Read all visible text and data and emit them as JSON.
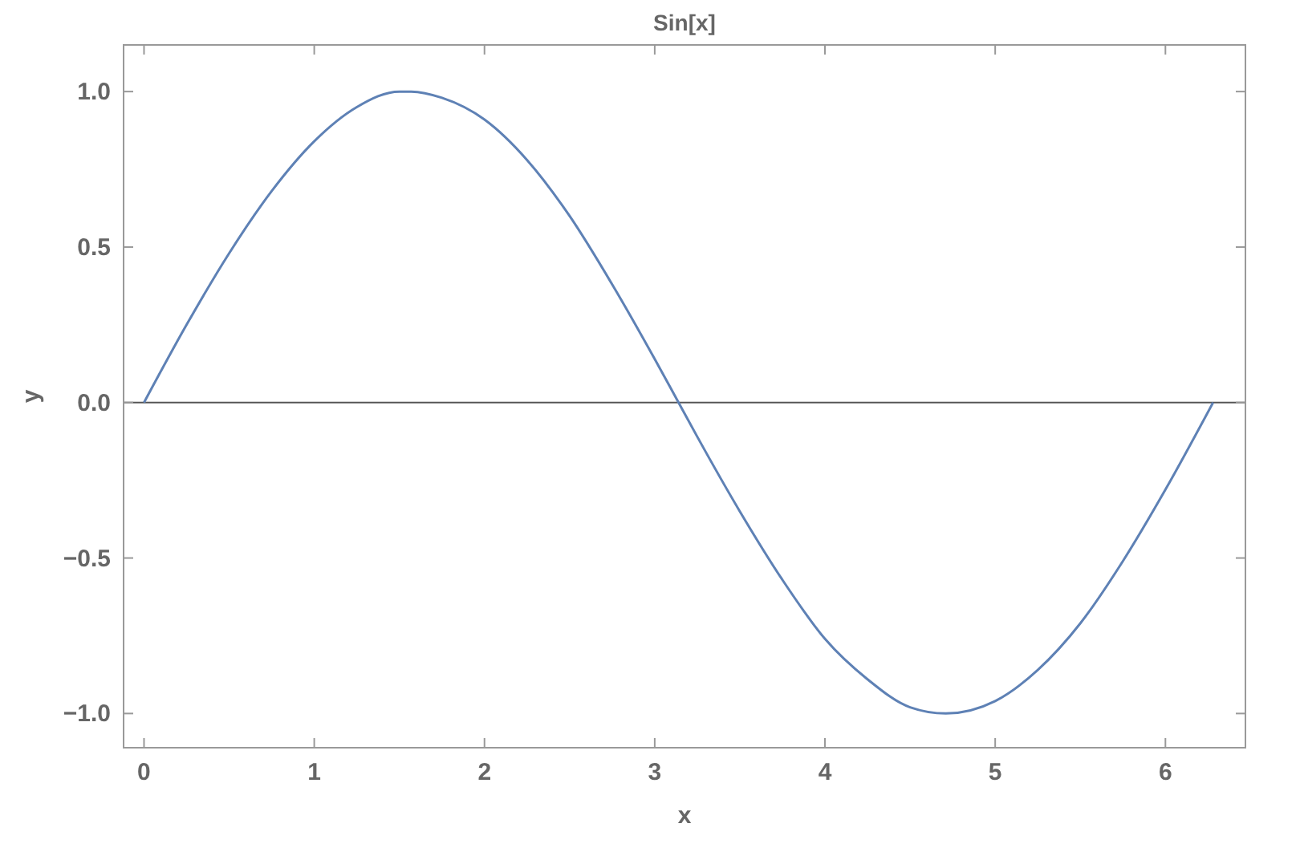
{
  "chart_data": {
    "type": "line",
    "title": "Sin[x]",
    "xlabel": "x",
    "ylabel": "y",
    "x": [
      0,
      0.25,
      0.5,
      0.75,
      1,
      1.25,
      1.5,
      1.57,
      1.75,
      2,
      2.25,
      2.5,
      2.75,
      3,
      3.14,
      3.25,
      3.5,
      3.75,
      4,
      4.25,
      4.5,
      4.71,
      5,
      5.25,
      5.5,
      5.75,
      6,
      6.28
    ],
    "series": [
      {
        "color": "#5e81b5",
        "values": [
          0,
          0.25,
          0.48,
          0.68,
          0.84,
          0.95,
          1.0,
          1.0,
          0.98,
          0.91,
          0.78,
          0.6,
          0.38,
          0.14,
          0,
          -0.11,
          -0.35,
          -0.57,
          -0.76,
          -0.89,
          -0.98,
          -1.0,
          -0.96,
          -0.86,
          -0.71,
          -0.51,
          -0.28,
          0
        ]
      }
    ],
    "xlim": [
      -0.12,
      6.47
    ],
    "ylim": [
      -1.11,
      1.15
    ],
    "xticks": [
      0,
      1,
      2,
      3,
      4,
      5,
      6
    ],
    "yticks": [
      {
        "value": -1,
        "label": "−1.0"
      },
      {
        "value": -0.5,
        "label": "−0.5"
      },
      {
        "value": 0,
        "label": "0.0"
      },
      {
        "value": 0.5,
        "label": "0.5"
      },
      {
        "value": 1,
        "label": "1.0"
      }
    ],
    "ref_lines": [
      {
        "axis": "y",
        "value": 0,
        "color": "#555555"
      }
    ],
    "grid": false,
    "marker": "none",
    "line_style": "solid"
  }
}
